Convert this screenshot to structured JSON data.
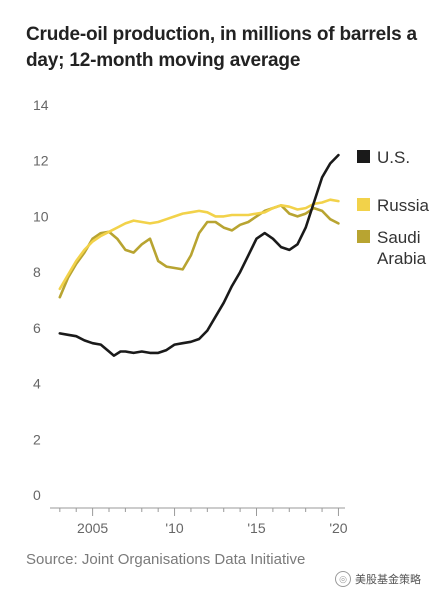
{
  "chart_data": {
    "type": "line",
    "title": "Crude-oil production, in millions of barrels a day; 12-month moving average",
    "source": "Source: Joint Organisations Data Initiative",
    "ylim": [
      0,
      14
    ],
    "yticks": [
      "0",
      "2",
      "4",
      "6",
      "8",
      "10",
      "12",
      "14"
    ],
    "xlim": [
      2002.4,
      2020.4
    ],
    "xticks": [
      {
        "value": 2005,
        "label": "2005"
      },
      {
        "value": 2010,
        "label": "'10"
      },
      {
        "value": 2015,
        "label": "'15"
      },
      {
        "value": 2020,
        "label": "'20"
      }
    ],
    "grid": false,
    "legend_position": "right",
    "series": [
      {
        "name": "U.S.",
        "color": "#1a1a1a",
        "points": [
          [
            2003.0,
            5.8
          ],
          [
            2003.5,
            5.75
          ],
          [
            2004.0,
            5.7
          ],
          [
            2004.5,
            5.55
          ],
          [
            2005.0,
            5.45
          ],
          [
            2005.5,
            5.4
          ],
          [
            2006.0,
            5.15
          ],
          [
            2006.3,
            5.0
          ],
          [
            2006.7,
            5.15
          ],
          [
            2007.0,
            5.15
          ],
          [
            2007.5,
            5.1
          ],
          [
            2008.0,
            5.15
          ],
          [
            2008.5,
            5.1
          ],
          [
            2009.0,
            5.1
          ],
          [
            2009.5,
            5.2
          ],
          [
            2010.0,
            5.4
          ],
          [
            2010.5,
            5.45
          ],
          [
            2011.0,
            5.5
          ],
          [
            2011.5,
            5.6
          ],
          [
            2012.0,
            5.9
          ],
          [
            2012.5,
            6.4
          ],
          [
            2013.0,
            6.9
          ],
          [
            2013.5,
            7.5
          ],
          [
            2014.0,
            8.0
          ],
          [
            2014.5,
            8.6
          ],
          [
            2015.0,
            9.2
          ],
          [
            2015.5,
            9.4
          ],
          [
            2016.0,
            9.2
          ],
          [
            2016.5,
            8.9
          ],
          [
            2017.0,
            8.8
          ],
          [
            2017.5,
            9.0
          ],
          [
            2018.0,
            9.6
          ],
          [
            2018.5,
            10.5
          ],
          [
            2019.0,
            11.4
          ],
          [
            2019.5,
            11.9
          ],
          [
            2020.0,
            12.2
          ]
        ]
      },
      {
        "name": "Russia",
        "color": "#f2d24a",
        "points": [
          [
            2003.0,
            7.4
          ],
          [
            2003.5,
            7.9
          ],
          [
            2004.0,
            8.4
          ],
          [
            2004.5,
            8.8
          ],
          [
            2005.0,
            9.1
          ],
          [
            2005.5,
            9.3
          ],
          [
            2006.0,
            9.45
          ],
          [
            2006.5,
            9.6
          ],
          [
            2007.0,
            9.75
          ],
          [
            2007.5,
            9.85
          ],
          [
            2008.0,
            9.8
          ],
          [
            2008.5,
            9.75
          ],
          [
            2009.0,
            9.8
          ],
          [
            2009.5,
            9.9
          ],
          [
            2010.0,
            10.0
          ],
          [
            2010.5,
            10.1
          ],
          [
            2011.0,
            10.15
          ],
          [
            2011.5,
            10.2
          ],
          [
            2012.0,
            10.15
          ],
          [
            2012.5,
            10.0
          ],
          [
            2013.0,
            10.0
          ],
          [
            2013.5,
            10.05
          ],
          [
            2014.0,
            10.05
          ],
          [
            2014.5,
            10.05
          ],
          [
            2015.0,
            10.1
          ],
          [
            2015.5,
            10.15
          ],
          [
            2016.0,
            10.3
          ],
          [
            2016.5,
            10.4
          ],
          [
            2017.0,
            10.35
          ],
          [
            2017.5,
            10.25
          ],
          [
            2018.0,
            10.3
          ],
          [
            2018.5,
            10.45
          ],
          [
            2019.0,
            10.5
          ],
          [
            2019.5,
            10.6
          ],
          [
            2020.0,
            10.55
          ]
        ]
      },
      {
        "name": "Saudi Arabia",
        "color": "#b8a431",
        "points": [
          [
            2003.0,
            7.1
          ],
          [
            2003.5,
            7.8
          ],
          [
            2004.0,
            8.3
          ],
          [
            2004.5,
            8.7
          ],
          [
            2005.0,
            9.2
          ],
          [
            2005.5,
            9.4
          ],
          [
            2006.0,
            9.45
          ],
          [
            2006.5,
            9.2
          ],
          [
            2007.0,
            8.8
          ],
          [
            2007.5,
            8.7
          ],
          [
            2008.0,
            9.0
          ],
          [
            2008.5,
            9.2
          ],
          [
            2009.0,
            8.4
          ],
          [
            2009.5,
            8.2
          ],
          [
            2010.0,
            8.15
          ],
          [
            2010.5,
            8.1
          ],
          [
            2011.0,
            8.6
          ],
          [
            2011.5,
            9.4
          ],
          [
            2012.0,
            9.8
          ],
          [
            2012.5,
            9.8
          ],
          [
            2013.0,
            9.6
          ],
          [
            2013.5,
            9.5
          ],
          [
            2014.0,
            9.7
          ],
          [
            2014.5,
            9.8
          ],
          [
            2015.0,
            10.0
          ],
          [
            2015.5,
            10.2
          ],
          [
            2016.0,
            10.3
          ],
          [
            2016.5,
            10.4
          ],
          [
            2017.0,
            10.1
          ],
          [
            2017.5,
            10.0
          ],
          [
            2018.0,
            10.1
          ],
          [
            2018.5,
            10.3
          ],
          [
            2019.0,
            10.2
          ],
          [
            2019.5,
            9.9
          ],
          [
            2020.0,
            9.75
          ]
        ]
      }
    ]
  },
  "watermark": {
    "text": "美股基金策略"
  }
}
